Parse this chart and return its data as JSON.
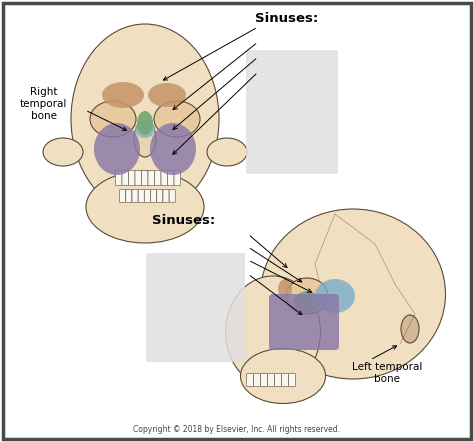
{
  "bg_color": "#ffffff",
  "border_color": "#4a4a4a",
  "copyright": "Copyright © 2018 by Elsevier, Inc. All rights reserved.",
  "sinuses_label_top": "Sinuses:",
  "sinuses_label_bottom": "Sinuses:",
  "right_label": "Right\ntemporal\nbone",
  "left_label": "Left temporal\nbone",
  "skull_fill": "#f0dfc0",
  "skull_stroke": "#5a4a38",
  "eye_fill": "#e8c9a0",
  "orange_color": "#c8956a",
  "purple_color": "#8878a8",
  "green_color": "#72a872",
  "blue_color": "#7aaec8",
  "blur_color": "#e0e0e0",
  "label_fs": 7.5,
  "title_fs": 9.5,
  "copy_fs": 5.5
}
